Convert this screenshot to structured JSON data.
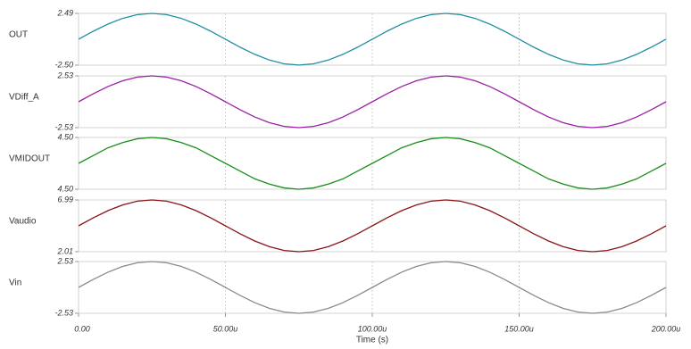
{
  "chart_data": [
    {
      "type": "line",
      "ylim": [
        -2.5,
        2.49
      ],
      "yticks": [
        {
          "value": 2.49,
          "label": "2.49"
        },
        {
          "value": -2.5,
          "label": "-2.50"
        }
      ],
      "series": [
        {
          "name": "OUT",
          "color": "#1f8fa0",
          "values": [
            0,
            0.77,
            1.46,
            2.01,
            2.37,
            2.49,
            2.37,
            2.01,
            1.46,
            0.77,
            0,
            -0.77,
            -1.46,
            -2.01,
            -2.37,
            -2.49,
            -2.37,
            -2.01,
            -1.46,
            -0.77,
            0,
            0.77,
            1.46,
            2.01,
            2.37,
            2.49,
            2.37,
            2.01,
            1.46,
            0.77,
            0,
            -0.77,
            -1.46,
            -2.01,
            -2.37,
            -2.49,
            -2.37,
            -2.01,
            -1.46,
            -0.77,
            0
          ]
        }
      ]
    },
    {
      "type": "line",
      "ylim": [
        -2.53,
        2.53
      ],
      "yticks": [
        {
          "value": 2.53,
          "label": "2.53"
        },
        {
          "value": -2.53,
          "label": "-2.53"
        }
      ],
      "series": [
        {
          "name": "VDiff_A",
          "color": "#9b1fa6",
          "values": [
            0,
            0.78,
            1.49,
            2.05,
            2.41,
            2.53,
            2.41,
            2.05,
            1.49,
            0.78,
            0,
            -0.78,
            -1.49,
            -2.05,
            -2.41,
            -2.53,
            -2.41,
            -2.05,
            -1.49,
            -0.78,
            0,
            0.78,
            1.49,
            2.05,
            2.41,
            2.53,
            2.41,
            2.05,
            1.49,
            0.78,
            0,
            -0.78,
            -1.49,
            -2.05,
            -2.41,
            -2.53,
            -2.41,
            -2.05,
            -1.49,
            -0.78,
            0
          ]
        }
      ]
    },
    {
      "type": "line",
      "ylim": [
        4.496,
        4.504
      ],
      "yticks": [
        {
          "value": 4.504,
          "label": "4.50"
        },
        {
          "value": 4.496,
          "label": "4.50"
        }
      ],
      "series": [
        {
          "name": "VMIDOUT",
          "color": "#1a8f1a",
          "values": [
            4.5,
            4.5012,
            4.5024,
            4.5032,
            4.5038,
            4.504,
            4.5038,
            4.5032,
            4.5024,
            4.5012,
            4.5,
            4.4988,
            4.4976,
            4.4968,
            4.4962,
            4.496,
            4.4962,
            4.4968,
            4.4976,
            4.4988,
            4.5,
            4.5012,
            4.5024,
            4.5032,
            4.5038,
            4.504,
            4.5038,
            4.5032,
            4.5024,
            4.5012,
            4.5,
            4.4988,
            4.4976,
            4.4968,
            4.4962,
            4.496,
            4.4962,
            4.4968,
            4.4976,
            4.4988,
            4.5
          ]
        }
      ]
    },
    {
      "type": "line",
      "ylim": [
        2.01,
        6.99
      ],
      "yticks": [
        {
          "value": 6.99,
          "label": "6.99"
        },
        {
          "value": 2.01,
          "label": "2.01"
        }
      ],
      "series": [
        {
          "name": "Vaudio",
          "color": "#8b1414",
          "values": [
            4.5,
            5.27,
            5.96,
            6.51,
            6.87,
            6.99,
            6.87,
            6.51,
            5.96,
            5.27,
            4.5,
            3.73,
            3.04,
            2.49,
            2.13,
            2.01,
            2.13,
            2.49,
            3.04,
            3.73,
            4.5,
            5.27,
            5.96,
            6.51,
            6.87,
            6.99,
            6.87,
            6.51,
            5.96,
            5.27,
            4.5,
            3.73,
            3.04,
            2.49,
            2.13,
            2.01,
            2.13,
            2.49,
            3.04,
            3.73,
            4.5
          ]
        }
      ]
    },
    {
      "type": "line",
      "ylim": [
        -2.53,
        2.53
      ],
      "yticks": [
        {
          "value": 2.53,
          "label": "2.53"
        },
        {
          "value": -2.53,
          "label": "-2.53"
        }
      ],
      "xlim": [
        0,
        0.0002
      ],
      "xlabel": "Time (s)",
      "xticks": [
        {
          "value": 0,
          "label": "0.00"
        },
        {
          "value": 5e-05,
          "label": "50.00u"
        },
        {
          "value": 0.0001,
          "label": "100.00u"
        },
        {
          "value": 0.00015,
          "label": "150.00u"
        },
        {
          "value": 0.0002,
          "label": "200.00u"
        }
      ],
      "x": [
        0,
        5e-06,
        1e-05,
        1.5e-05,
        2e-05,
        2.5e-05,
        3e-05,
        3.5e-05,
        4e-05,
        4.5e-05,
        5e-05,
        5.5e-05,
        6e-05,
        6.5e-05,
        7e-05,
        7.5e-05,
        8e-05,
        8.5e-05,
        9e-05,
        9.5e-05,
        0.0001,
        0.000105,
        0.00011,
        0.000115,
        0.00012,
        0.000125,
        0.00013,
        0.000135,
        0.00014,
        0.000145,
        0.00015,
        0.000155,
        0.00016,
        0.000165,
        0.00017,
        0.000175,
        0.00018,
        0.000185,
        0.00019,
        0.000195,
        0.0002
      ],
      "series": [
        {
          "name": "Vin",
          "color": "#8a8a8a",
          "values": [
            0,
            0.78,
            1.49,
            2.05,
            2.41,
            2.53,
            2.41,
            2.05,
            1.49,
            0.78,
            0,
            -0.78,
            -1.49,
            -2.05,
            -2.41,
            -2.53,
            -2.41,
            -2.05,
            -1.49,
            -0.78,
            0,
            0.78,
            1.49,
            2.05,
            2.41,
            2.53,
            2.41,
            2.05,
            1.49,
            0.78,
            0,
            -0.78,
            -1.49,
            -2.05,
            -2.41,
            -2.53,
            -2.41,
            -2.05,
            -1.49,
            -0.78,
            0
          ]
        }
      ]
    }
  ]
}
